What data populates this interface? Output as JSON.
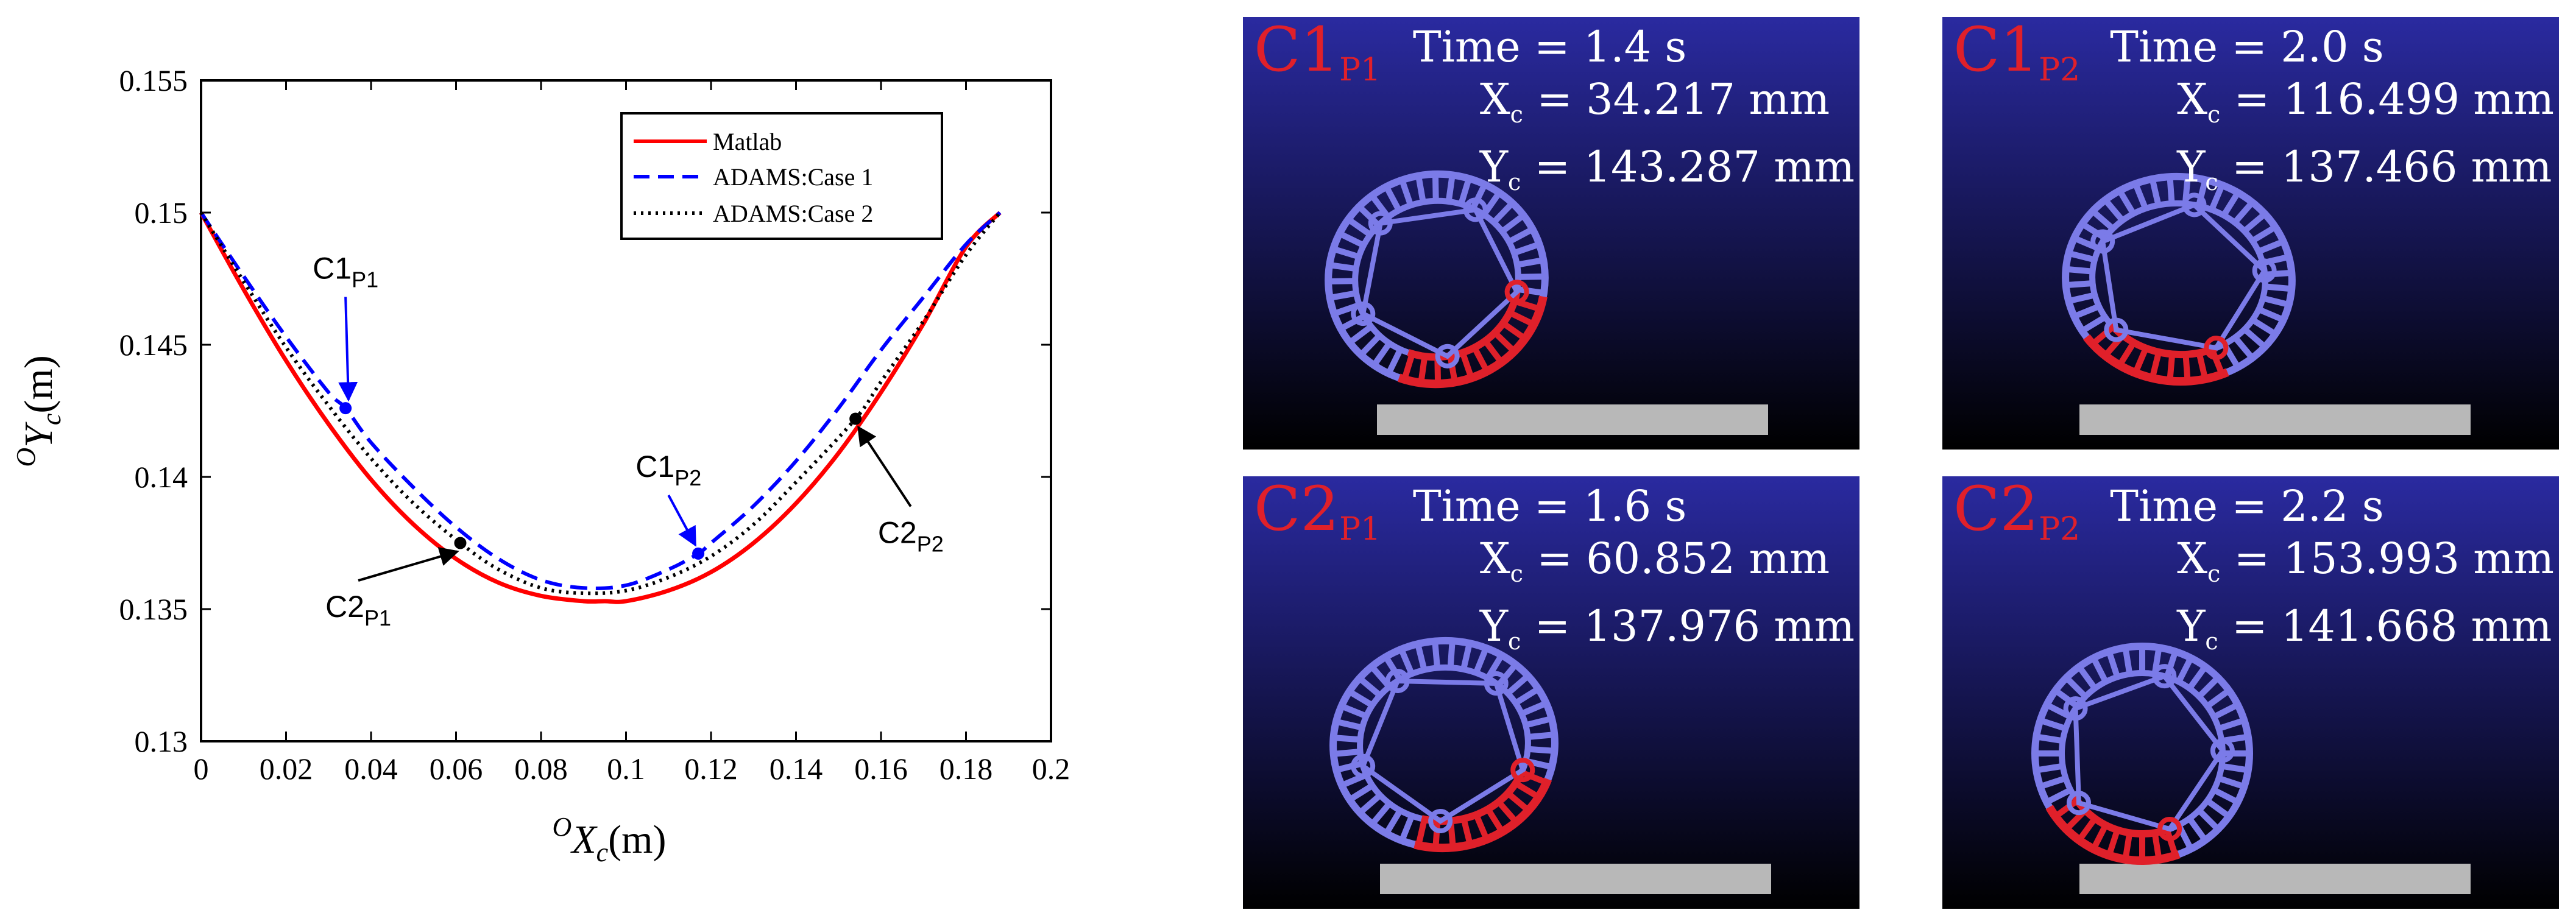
{
  "chart_data": {
    "type": "line",
    "xlabel_sup": "O",
    "xlabel_var": "X",
    "xlabel_sub": "c",
    "xlabel_unit": "(m)",
    "ylabel_sup": "O",
    "ylabel_var": "Y",
    "ylabel_sub": "c",
    "ylabel_unit": "(m)",
    "xlim": [
      0,
      0.2
    ],
    "ylim": [
      0.13,
      0.155
    ],
    "xticks": [
      "0",
      "0.02",
      "0.04",
      "0.06",
      "0.08",
      "0.1",
      "0.12",
      "0.14",
      "0.16",
      "0.18",
      "0.2"
    ],
    "yticks": [
      "0.13",
      "0.135",
      "0.14",
      "0.145",
      "0.15",
      "0.155"
    ],
    "legend_placement": "top-right",
    "series": [
      {
        "name": "Matlab",
        "color": "#ff0000",
        "style": "solid",
        "x": [
          0,
          0.01,
          0.02,
          0.03,
          0.04,
          0.05,
          0.06,
          0.07,
          0.08,
          0.09,
          0.095,
          0.1,
          0.11,
          0.12,
          0.13,
          0.14,
          0.15,
          0.16,
          0.17,
          0.18,
          0.188
        ],
        "y": [
          0.15,
          0.1471,
          0.1444,
          0.142,
          0.1399,
          0.1382,
          0.1369,
          0.136,
          0.1355,
          0.1353,
          0.1353,
          0.1353,
          0.1357,
          0.1364,
          0.1375,
          0.139,
          0.1409,
          0.1432,
          0.1458,
          0.1487,
          0.15
        ]
      },
      {
        "name": "ADAMS:Case 1",
        "color": "#0000ff",
        "style": "dashed",
        "x": [
          0,
          0.01,
          0.02,
          0.03,
          0.034,
          0.04,
          0.05,
          0.06,
          0.07,
          0.08,
          0.09,
          0.1,
          0.11,
          0.117,
          0.12,
          0.13,
          0.14,
          0.15,
          0.16,
          0.17,
          0.18,
          0.188
        ],
        "y": [
          0.15,
          0.1476,
          0.1453,
          0.1432,
          0.1426,
          0.1413,
          0.1396,
          0.1381,
          0.1369,
          0.1361,
          0.1358,
          0.1359,
          0.1365,
          0.1371,
          0.1375,
          0.1389,
          0.1406,
          0.1426,
          0.1448,
          0.1468,
          0.1488,
          0.15
        ]
      },
      {
        "name": "ADAMS:Case 2",
        "color": "#000000",
        "style": "dotted",
        "x": [
          0,
          0.01,
          0.02,
          0.03,
          0.04,
          0.05,
          0.061,
          0.07,
          0.08,
          0.09,
          0.1,
          0.11,
          0.12,
          0.13,
          0.14,
          0.154,
          0.16,
          0.17,
          0.18,
          0.188
        ],
        "y": [
          0.15,
          0.1474,
          0.1449,
          0.1427,
          0.1407,
          0.139,
          0.1375,
          0.1365,
          0.1358,
          0.1356,
          0.1357,
          0.1362,
          0.137,
          0.1382,
          0.1398,
          0.1422,
          0.1436,
          0.1459,
          0.1484,
          0.15
        ]
      }
    ],
    "annotations": [
      {
        "base": "C1",
        "sub": "P1",
        "x": 0.034,
        "y": 0.1426,
        "color": "#0000ff",
        "text_x": 0.034,
        "text_y": 0.1475
      },
      {
        "base": "C1",
        "sub": "P2",
        "x": 0.117,
        "y": 0.1371,
        "color": "#0000ff",
        "text_x": 0.11,
        "text_y": 0.14
      },
      {
        "base": "C2",
        "sub": "P1",
        "x": 0.061,
        "y": 0.1375,
        "color": "#000000",
        "text_x": 0.037,
        "text_y": 0.1347
      },
      {
        "base": "C2",
        "sub": "P2",
        "x": 0.154,
        "y": 0.1422,
        "color": "#000000",
        "text_x": 0.167,
        "text_y": 0.1375
      }
    ]
  },
  "panels": [
    {
      "label": "C1",
      "label_sub": "P1",
      "time": "Time = 1.4 s",
      "xc_prefix": "X",
      "xc_value": "= 34.217 mm",
      "yc_prefix": "Y",
      "yc_value": "= 143.287 mm",
      "sub": "c"
    },
    {
      "label": "C1",
      "label_sub": "P2",
      "time": "Time = 2.0 s",
      "xc_prefix": "X",
      "xc_value": "= 116.499 mm",
      "yc_prefix": "Y",
      "yc_value": "= 137.466 mm",
      "sub": "c"
    },
    {
      "label": "C2",
      "label_sub": "P1",
      "time": "Time = 1.6 s",
      "xc_prefix": "X",
      "xc_value": "= 60.852 mm",
      "yc_prefix": "Y",
      "yc_value": "= 137.976 mm",
      "sub": "c"
    },
    {
      "label": "C2",
      "label_sub": "P2",
      "time": "Time = 2.2 s",
      "xc_prefix": "X",
      "xc_value": "= 153.993 mm",
      "yc_prefix": "Y",
      "yc_value": "= 141.668 mm",
      "sub": "c"
    }
  ],
  "colors": {
    "panel_top": "#2a2aa0",
    "panel_bottom": "#000000",
    "robot": "#7b7be8",
    "active_segment": "#e0202a",
    "ground": "#b8b8b8"
  }
}
